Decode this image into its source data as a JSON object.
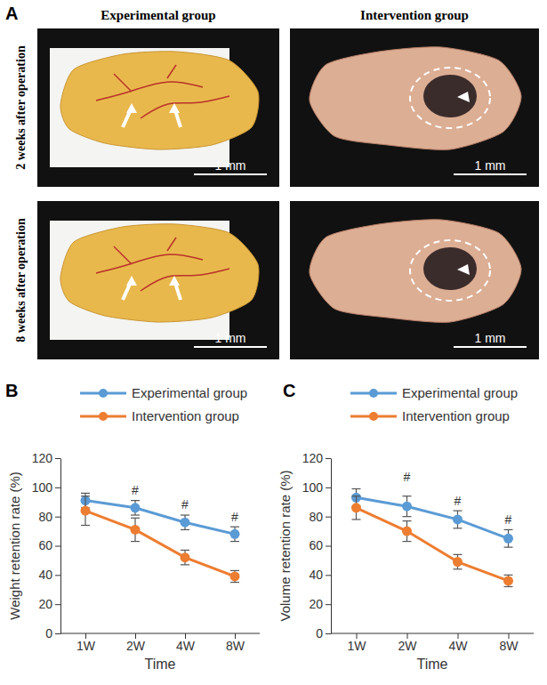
{
  "panel_a": {
    "label": "A",
    "columns": [
      "Experimental group",
      "Intervention group"
    ],
    "rows": [
      "2 weeks after operation",
      "8 weeks after operation"
    ],
    "scale_bar": "1 mm"
  },
  "chart_data": [
    {
      "type": "line",
      "panel_label": "B",
      "categories": [
        "1W",
        "2W",
        "4W",
        "8W"
      ],
      "series": [
        {
          "name": "Experimental group",
          "color": "#5b9bd5",
          "marker": "circle",
          "values": [
            91,
            86,
            76,
            68
          ],
          "errors": [
            5,
            5,
            5,
            5
          ]
        },
        {
          "name": "Intervention group",
          "color": "#ed7d31",
          "marker": "circle",
          "values": [
            84,
            71,
            52,
            39
          ],
          "errors": [
            10,
            8,
            5,
            4
          ]
        }
      ],
      "ylim": [
        0,
        120
      ],
      "yticks": [
        0,
        20,
        40,
        60,
        80,
        100,
        120
      ],
      "x_label": "Time",
      "y_label": "Weight retention rate (%)",
      "legend": "top",
      "annotations": [
        {
          "text": "#",
          "x": "2W",
          "y": 95
        },
        {
          "text": "#",
          "x": "4W",
          "y": 85
        },
        {
          "text": "#",
          "x": "8W",
          "y": 77
        }
      ]
    },
    {
      "type": "line",
      "panel_label": "C",
      "categories": [
        "1W",
        "2W",
        "4W",
        "8W"
      ],
      "series": [
        {
          "name": "Experimental group",
          "color": "#5b9bd5",
          "marker": "circle",
          "values": [
            93,
            87,
            78,
            65
          ],
          "errors": [
            6,
            7,
            6,
            6
          ]
        },
        {
          "name": "Intervention group",
          "color": "#ed7d31",
          "marker": "circle",
          "values": [
            86,
            70,
            49,
            36
          ],
          "errors": [
            8,
            7,
            5,
            4
          ]
        }
      ],
      "ylim": [
        0,
        120
      ],
      "yticks": [
        0,
        20,
        40,
        60,
        80,
        100,
        120
      ],
      "x_label": "Time",
      "y_label": "Volume retention rate (%)",
      "legend": "top",
      "annotations": [
        {
          "text": "#",
          "x": "2W",
          "y": 104
        },
        {
          "text": "#",
          "x": "4W",
          "y": 88
        },
        {
          "text": "#",
          "x": "8W",
          "y": 75
        }
      ]
    }
  ]
}
